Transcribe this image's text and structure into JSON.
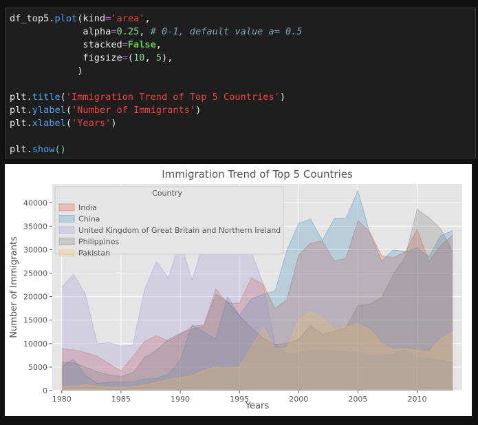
{
  "code_cell": {
    "lines": [
      [
        [
          "tok-name",
          "df_top5."
        ],
        [
          "tok-func",
          "plot"
        ],
        [
          "tok-paren",
          "("
        ],
        [
          "tok-name",
          "kind"
        ],
        [
          "tok-op",
          "="
        ],
        [
          "tok-str",
          "'area'"
        ],
        [
          "tok-name",
          ","
        ]
      ],
      [
        [
          "tok-name",
          "             alpha"
        ],
        [
          "tok-op",
          "="
        ],
        [
          "tok-num",
          "0.25"
        ],
        [
          "tok-name",
          ", "
        ],
        [
          "tok-cmt",
          "# 0-1, default value a= 0.5"
        ]
      ],
      [
        [
          "tok-name",
          "             stacked"
        ],
        [
          "tok-op",
          "="
        ],
        [
          "tok-kw",
          "False"
        ],
        [
          "tok-name",
          ","
        ]
      ],
      [
        [
          "tok-name",
          "             figsize"
        ],
        [
          "tok-op",
          "="
        ],
        [
          "tok-paren",
          "("
        ],
        [
          "tok-num",
          "10"
        ],
        [
          "tok-name",
          ", "
        ],
        [
          "tok-num",
          "5"
        ],
        [
          "tok-paren",
          ")"
        ],
        [
          "tok-name",
          ","
        ]
      ],
      [
        [
          "tok-name",
          "            )"
        ]
      ],
      [],
      [
        [
          "tok-name",
          "plt."
        ],
        [
          "tok-func",
          "title"
        ],
        [
          "tok-paren",
          "("
        ],
        [
          "tok-str",
          "'Immigration Trend of Top 5 Countries'"
        ],
        [
          "tok-paren",
          ")"
        ]
      ],
      [
        [
          "tok-name",
          "plt."
        ],
        [
          "tok-func",
          "ylabel"
        ],
        [
          "tok-paren",
          "("
        ],
        [
          "tok-str",
          "'Number of Immigrants'"
        ],
        [
          "tok-paren",
          ")"
        ]
      ],
      [
        [
          "tok-name",
          "plt."
        ],
        [
          "tok-func",
          "xlabel"
        ],
        [
          "tok-paren",
          "("
        ],
        [
          "tok-str",
          "'Years'"
        ],
        [
          "tok-paren",
          ")"
        ]
      ],
      [],
      [
        [
          "tok-name",
          "plt."
        ],
        [
          "tok-func",
          "show"
        ],
        [
          "tok-call",
          "()"
        ]
      ]
    ]
  },
  "chart_data": {
    "type": "area",
    "title": "Immigration Trend of Top 5 Countries",
    "xlabel": "Years",
    "ylabel": "Number of Immigrants",
    "xlim": [
      1979.2,
      2013.8
    ],
    "ylim": [
      0,
      44000
    ],
    "x_ticks": [
      1980,
      1985,
      1990,
      1995,
      2000,
      2005,
      2010
    ],
    "y_ticks": [
      0,
      5000,
      10000,
      15000,
      20000,
      25000,
      30000,
      35000,
      40000
    ],
    "grid": true,
    "stacked": false,
    "alpha": 0.25,
    "legend": {
      "title": "Country",
      "placement": "top-left"
    },
    "x": [
      1980,
      1981,
      1982,
      1983,
      1984,
      1985,
      1986,
      1987,
      1988,
      1989,
      1990,
      1991,
      1992,
      1993,
      1994,
      1995,
      1996,
      1997,
      1998,
      1999,
      2000,
      2001,
      2002,
      2003,
      2004,
      2005,
      2006,
      2007,
      2008,
      2009,
      2010,
      2011,
      2012,
      2013
    ],
    "series": [
      {
        "name": "India",
        "color": "#e24a33",
        "values": [
          8900,
          8700,
          8100,
          7300,
          5700,
          4200,
          7200,
          10500,
          11700,
          10500,
          12000,
          13700,
          14000,
          21600,
          18600,
          18600,
          24000,
          22600,
          17500,
          19300,
          28900,
          31400,
          31900,
          27600,
          28200,
          36200,
          33800,
          28700,
          28300,
          29500,
          34300,
          27500,
          30900,
          33100
        ]
      },
      {
        "name": "China",
        "color": "#348abd",
        "values": [
          5100,
          6700,
          3300,
          1500,
          1800,
          1900,
          1800,
          2500,
          2600,
          3500,
          6500,
          14000,
          12500,
          11000,
          20000,
          16000,
          19500,
          20500,
          21200,
          29900,
          35600,
          36500,
          32000,
          36600,
          36700,
          42600,
          33500,
          27600,
          30000,
          29600,
          30400,
          28500,
          33000,
          34100
        ]
      },
      {
        "name": "United Kingdom of Great Britain and Northern Ireland",
        "color": "#988ed5",
        "values": [
          22000,
          24800,
          20500,
          10000,
          10200,
          9500,
          9600,
          21600,
          27500,
          24000,
          31700,
          23500,
          31700,
          35000,
          39000,
          30500,
          29500,
          22800,
          10000,
          7800,
          8000,
          8600,
          8500,
          8500,
          8300,
          8000,
          7500,
          7400,
          7700,
          8800,
          7000,
          6800,
          6400,
          5900
        ]
      },
      {
        "name": "Philippines",
        "color": "#777777",
        "values": [
          6100,
          5900,
          5000,
          4000,
          3300,
          3000,
          3800,
          7100,
          8600,
          10900,
          12200,
          13100,
          13700,
          20500,
          19000,
          15900,
          13400,
          11200,
          9800,
          10100,
          10900,
          13900,
          12000,
          12700,
          13400,
          18100,
          18400,
          19800,
          24800,
          28500,
          38600,
          36800,
          34400,
          29600
        ]
      },
      {
        "name": "Pakistan",
        "color": "#fbc15e",
        "values": [
          1000,
          900,
          1300,
          900,
          700,
          600,
          800,
          1200,
          1700,
          2400,
          2700,
          3200,
          4300,
          5000,
          4800,
          5000,
          9200,
          13500,
          9000,
          8900,
          15200,
          16800,
          15500,
          13000,
          13600,
          14200,
          13000,
          10000,
          8700,
          9000,
          8500,
          8200,
          11000,
          12600
        ]
      }
    ]
  }
}
